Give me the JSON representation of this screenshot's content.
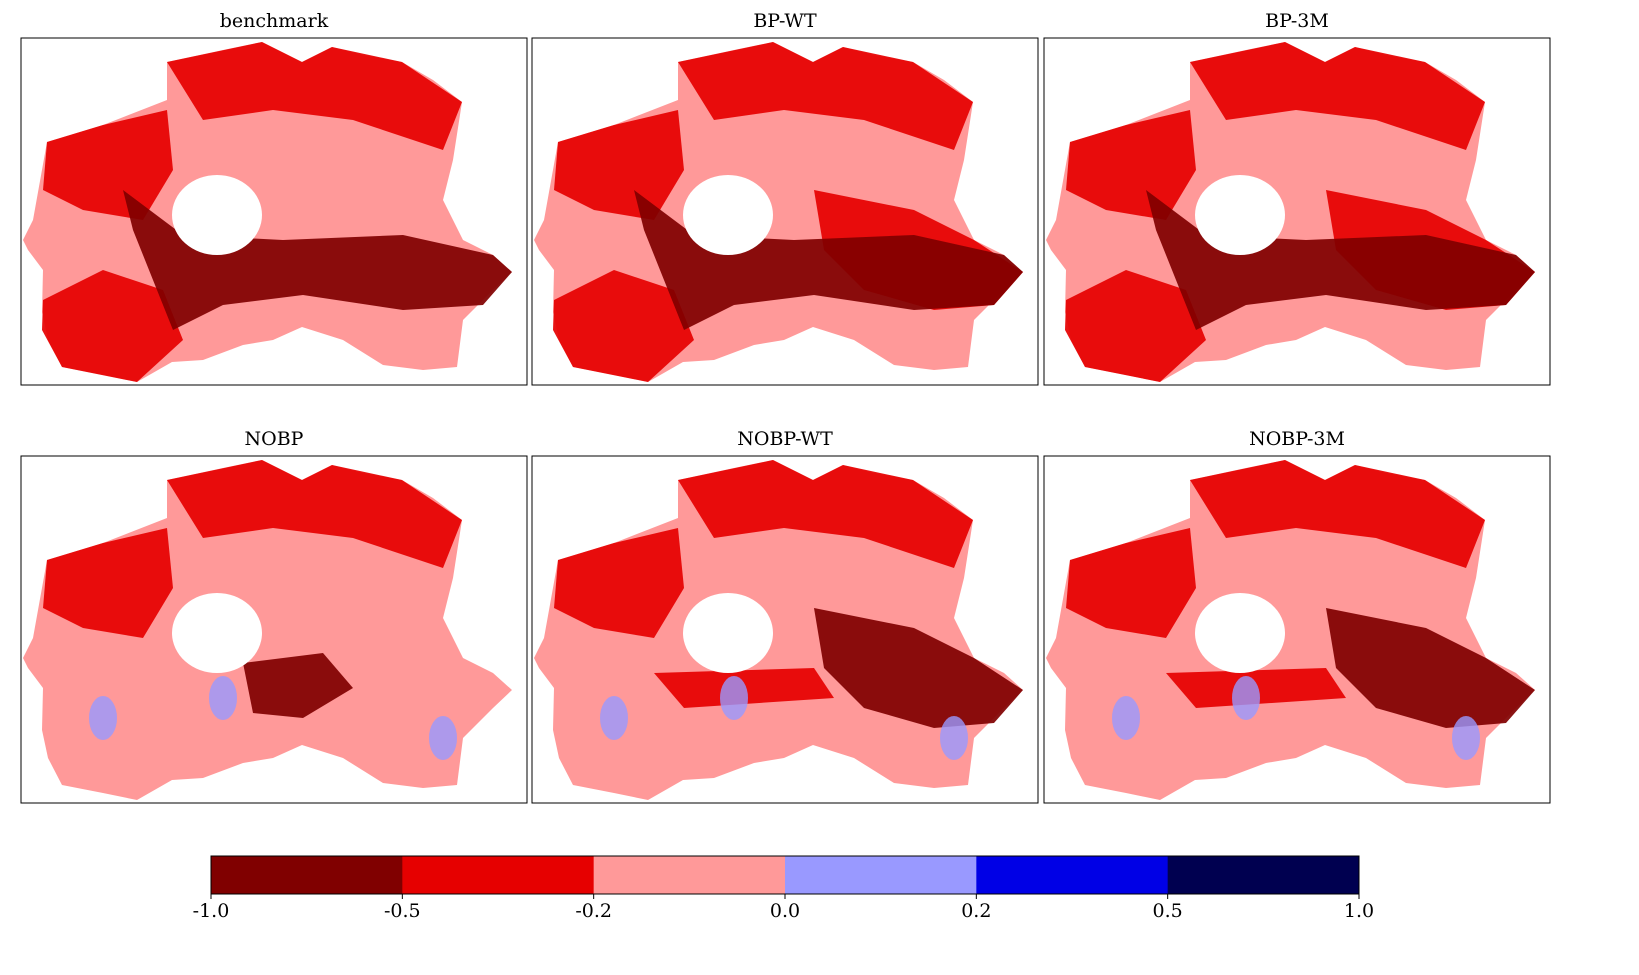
{
  "panels": [
    {
      "title": "benchmark"
    },
    {
      "title": "BP-WT"
    },
    {
      "title": "BP-3M"
    },
    {
      "title": "NOBP"
    },
    {
      "title": "NOBP-WT"
    },
    {
      "title": "NOBP-3M"
    }
  ],
  "colorbar": {
    "ticks": [
      {
        "value": -1,
        "label": "-1.0"
      },
      -0.5,
      -0.2,
      {
        "value": 0,
        "label": "0.0"
      },
      0.2,
      0.5,
      {
        "value": 1,
        "label": "1.0"
      }
    ],
    "colors": [
      "#800000",
      "#e60000",
      "#ff9999",
      "#9999ff",
      "#0000e6",
      "#000050"
    ]
  }
}
